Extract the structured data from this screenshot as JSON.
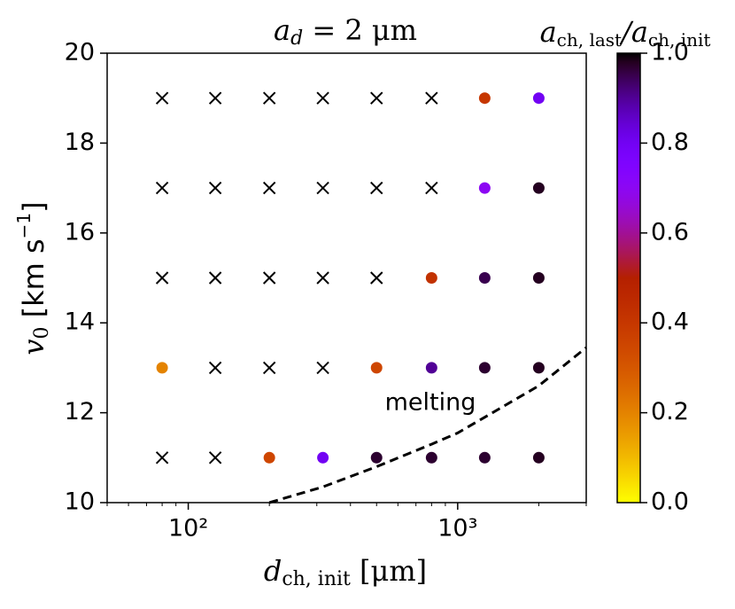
{
  "chart_data": {
    "type": "scatter",
    "title": [
      "a",
      "d",
      " = 2 μm"
    ],
    "xlabel": [
      "d",
      "ch, init",
      " [μm]"
    ],
    "ylabel": [
      "v",
      "0",
      " [km s",
      "−1",
      "]"
    ],
    "xscale": "log",
    "xlim": [
      50,
      3000
    ],
    "xticks": [
      {
        "value": 100,
        "label": "10²"
      },
      {
        "value": 1000,
        "label": "10³"
      }
    ],
    "xminorticks": [
      50,
      60,
      70,
      80,
      90,
      200,
      300,
      400,
      500,
      600,
      700,
      800,
      900,
      2000,
      3000
    ],
    "ylim": [
      10,
      20
    ],
    "yticks": [
      10,
      12,
      14,
      16,
      18,
      20
    ],
    "points": {
      "x": [
        1260,
        2000,
        1260,
        2000,
        800,
        1260,
        2000,
        80,
        500,
        800,
        1260,
        2000,
        200,
        316,
        500,
        800,
        1260,
        2000
      ],
      "y": [
        19,
        19,
        17,
        17,
        15,
        15,
        15,
        13,
        13,
        13,
        13,
        13,
        11,
        11,
        11,
        11,
        11,
        11
      ],
      "c": [
        0.4,
        0.8,
        0.7,
        0.98,
        0.42,
        0.95,
        0.98,
        0.2,
        0.35,
        0.9,
        0.97,
        0.98,
        0.35,
        0.8,
        0.97,
        0.97,
        0.97,
        0.98
      ]
    },
    "crosses": {
      "color": "#000000",
      "x": [
        80,
        126,
        200,
        316,
        500,
        800,
        80,
        126,
        200,
        316,
        500,
        800,
        80,
        126,
        200,
        316,
        500,
        126,
        200,
        316,
        80,
        126
      ],
      "y": [
        19,
        19,
        19,
        19,
        19,
        19,
        17,
        17,
        17,
        17,
        17,
        17,
        15,
        15,
        15,
        15,
        15,
        13,
        13,
        13,
        11,
        11
      ]
    },
    "melting_curve": {
      "color": "#000000",
      "x": [
        200,
        316,
        500,
        800,
        1000,
        1260,
        2000,
        3000
      ],
      "y": [
        10,
        10.35,
        10.8,
        11.3,
        11.55,
        11.9,
        12.6,
        13.45
      ]
    },
    "annotation": "melting",
    "colorbar": {
      "colormap": "gnuplot_r",
      "label": [
        "a",
        "ch, last",
        "/a",
        "ch, init"
      ],
      "ylim": [
        0,
        1
      ],
      "yticks": [
        {
          "value": 0,
          "label": "0.0"
        },
        0.2,
        0.4,
        0.6,
        0.8,
        {
          "value": 1,
          "label": "1.0"
        }
      ]
    }
  }
}
